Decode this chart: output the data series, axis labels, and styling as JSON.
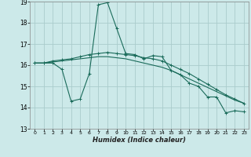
{
  "xlabel": "Humidex (Indice chaleur)",
  "bg_color": "#cce9e9",
  "grid_color": "#aacccc",
  "line_color": "#1a6b5a",
  "xlim": [
    -0.5,
    23.5
  ],
  "ylim": [
    13,
    19
  ],
  "yticks": [
    13,
    14,
    15,
    16,
    17,
    18,
    19
  ],
  "xticks": [
    0,
    1,
    2,
    3,
    4,
    5,
    6,
    7,
    8,
    9,
    10,
    11,
    12,
    13,
    14,
    15,
    16,
    17,
    18,
    19,
    20,
    21,
    22,
    23
  ],
  "series1_x": [
    0,
    1,
    2,
    3,
    4,
    5,
    6,
    7,
    8,
    9,
    10,
    11,
    12,
    13,
    14,
    15,
    16,
    17,
    18,
    19,
    20,
    21,
    22,
    23
  ],
  "series1_y": [
    16.1,
    16.1,
    16.1,
    15.8,
    14.3,
    14.4,
    15.6,
    18.85,
    18.95,
    17.75,
    16.55,
    16.5,
    16.3,
    16.45,
    16.4,
    15.75,
    15.55,
    15.15,
    15.0,
    14.5,
    14.5,
    13.75,
    13.85,
    13.8
  ],
  "series2_x": [
    0,
    1,
    2,
    3,
    4,
    5,
    6,
    7,
    8,
    9,
    10,
    11,
    12,
    13,
    14,
    15,
    16,
    17,
    18,
    19,
    20,
    21,
    22,
    23
  ],
  "series2_y": [
    16.1,
    16.1,
    16.2,
    16.25,
    16.3,
    16.4,
    16.5,
    16.55,
    16.6,
    16.55,
    16.5,
    16.45,
    16.35,
    16.3,
    16.2,
    16.0,
    15.8,
    15.6,
    15.35,
    15.1,
    14.85,
    14.6,
    14.4,
    14.2
  ],
  "series3_x": [
    0,
    1,
    2,
    3,
    4,
    5,
    6,
    7,
    8,
    9,
    10,
    11,
    12,
    13,
    14,
    15,
    16,
    17,
    18,
    19,
    20,
    21,
    22,
    23
  ],
  "series3_y": [
    16.1,
    16.1,
    16.15,
    16.2,
    16.25,
    16.3,
    16.35,
    16.4,
    16.4,
    16.35,
    16.3,
    16.2,
    16.1,
    16.0,
    15.9,
    15.75,
    15.55,
    15.35,
    15.15,
    14.95,
    14.75,
    14.55,
    14.35,
    14.2
  ]
}
